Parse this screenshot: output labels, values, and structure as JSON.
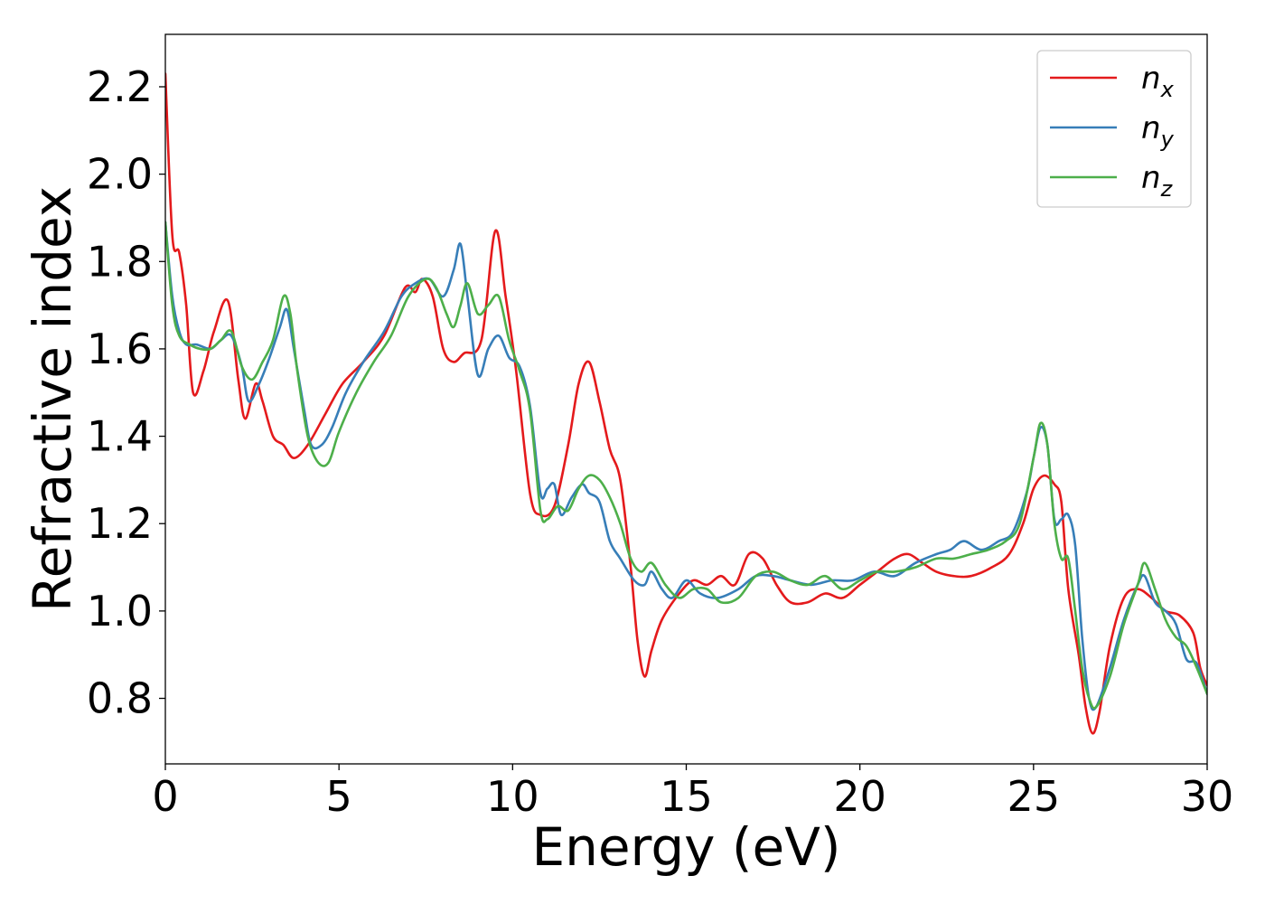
{
  "chart_data": {
    "type": "line",
    "title": "",
    "xlabel": "Energy (eV)",
    "ylabel": "Refractive index",
    "xlim": [
      0,
      30
    ],
    "ylim": [
      0.65,
      2.32
    ],
    "xticks": [
      "0",
      "5",
      "10",
      "15",
      "20",
      "25",
      "30"
    ],
    "yticks": [
      "0.8",
      "1.0",
      "1.2",
      "1.4",
      "1.6",
      "1.8",
      "2.0",
      "2.2"
    ],
    "grid": false,
    "legend_position": "top-right",
    "series": [
      {
        "name_base": "n",
        "name_sub": "x",
        "color": "#e41a1c",
        "x": [
          0,
          0.2,
          0.4,
          0.6,
          0.8,
          1.1,
          1.4,
          1.8,
          2.1,
          2.3,
          2.6,
          2.8,
          3.1,
          3.4,
          3.7,
          4.1,
          4.6,
          5.1,
          5.7,
          6.3,
          6.9,
          7.2,
          7.4,
          7.7,
          8.0,
          8.3,
          8.6,
          9.1,
          9.5,
          9.8,
          10.1,
          10.5,
          10.8,
          11.2,
          11.6,
          11.9,
          12.2,
          12.5,
          12.8,
          13.1,
          13.4,
          13.6,
          13.8,
          14.0,
          14.3,
          14.8,
          15.2,
          15.6,
          16.0,
          16.4,
          16.8,
          17.2,
          17.6,
          18.0,
          18.5,
          19.0,
          19.5,
          20.0,
          20.5,
          21.0,
          21.4,
          21.8,
          22.2,
          22.7,
          23.2,
          23.8,
          24.3,
          24.7,
          25.0,
          25.3,
          25.6,
          25.8,
          26.0,
          26.3,
          26.5,
          26.7,
          26.9,
          27.2,
          27.6,
          28.0,
          28.4,
          28.8,
          29.2,
          29.6,
          29.8,
          30.0
        ],
        "values": [
          2.23,
          1.86,
          1.82,
          1.7,
          1.5,
          1.55,
          1.64,
          1.71,
          1.53,
          1.44,
          1.52,
          1.48,
          1.4,
          1.38,
          1.35,
          1.38,
          1.45,
          1.52,
          1.57,
          1.63,
          1.74,
          1.73,
          1.76,
          1.72,
          1.6,
          1.57,
          1.59,
          1.62,
          1.87,
          1.72,
          1.55,
          1.27,
          1.22,
          1.24,
          1.38,
          1.52,
          1.57,
          1.48,
          1.37,
          1.3,
          1.1,
          0.93,
          0.85,
          0.91,
          0.98,
          1.04,
          1.07,
          1.06,
          1.08,
          1.06,
          1.13,
          1.12,
          1.06,
          1.02,
          1.02,
          1.04,
          1.03,
          1.06,
          1.09,
          1.12,
          1.13,
          1.11,
          1.09,
          1.08,
          1.08,
          1.1,
          1.13,
          1.2,
          1.28,
          1.31,
          1.29,
          1.25,
          1.05,
          0.9,
          0.78,
          0.72,
          0.77,
          0.92,
          1.03,
          1.05,
          1.03,
          1.0,
          0.99,
          0.95,
          0.87,
          0.83
        ]
      },
      {
        "name_base": "n",
        "name_sub": "y",
        "color": "#377eb8",
        "x": [
          0,
          0.2,
          0.4,
          0.6,
          0.9,
          1.3,
          1.6,
          1.9,
          2.2,
          2.4,
          2.7,
          3.0,
          3.3,
          3.5,
          3.7,
          4.0,
          4.2,
          4.5,
          4.8,
          5.2,
          5.7,
          6.3,
          6.8,
          7.2,
          7.6,
          8.0,
          8.3,
          8.5,
          8.7,
          9.0,
          9.3,
          9.6,
          9.9,
          10.2,
          10.5,
          10.8,
          11.0,
          11.2,
          11.4,
          11.7,
          12.0,
          12.2,
          12.5,
          12.8,
          13.1,
          13.5,
          13.8,
          14.0,
          14.3,
          14.6,
          15.0,
          15.4,
          15.9,
          16.5,
          17.0,
          17.5,
          18.0,
          18.6,
          19.2,
          19.8,
          20.4,
          21.0,
          21.6,
          22.2,
          22.6,
          23.0,
          23.5,
          24.0,
          24.4,
          24.8,
          25.0,
          25.2,
          25.4,
          25.6,
          25.8,
          26.0,
          26.2,
          26.4,
          26.6,
          26.8,
          27.2,
          27.6,
          28.0,
          28.2,
          28.5,
          28.8,
          29.1,
          29.4,
          29.7,
          30.0
        ],
        "values": [
          1.89,
          1.72,
          1.64,
          1.61,
          1.61,
          1.6,
          1.62,
          1.63,
          1.56,
          1.48,
          1.52,
          1.58,
          1.65,
          1.69,
          1.6,
          1.46,
          1.38,
          1.38,
          1.42,
          1.5,
          1.57,
          1.64,
          1.72,
          1.75,
          1.76,
          1.72,
          1.78,
          1.84,
          1.72,
          1.54,
          1.6,
          1.63,
          1.58,
          1.56,
          1.47,
          1.27,
          1.28,
          1.29,
          1.22,
          1.26,
          1.29,
          1.27,
          1.25,
          1.16,
          1.12,
          1.07,
          1.06,
          1.09,
          1.05,
          1.03,
          1.07,
          1.04,
          1.03,
          1.05,
          1.08,
          1.08,
          1.07,
          1.06,
          1.07,
          1.07,
          1.09,
          1.08,
          1.11,
          1.13,
          1.14,
          1.16,
          1.14,
          1.16,
          1.18,
          1.27,
          1.35,
          1.42,
          1.38,
          1.21,
          1.21,
          1.22,
          1.15,
          0.94,
          0.8,
          0.78,
          0.87,
          0.98,
          1.06,
          1.08,
          1.02,
          1.0,
          0.97,
          0.89,
          0.88,
          0.81
        ]
      },
      {
        "name_base": "n",
        "name_sub": "z",
        "color": "#4daf4a",
        "x": [
          0,
          0.2,
          0.4,
          0.7,
          1.0,
          1.3,
          1.6,
          1.9,
          2.2,
          2.5,
          2.8,
          3.1,
          3.4,
          3.6,
          3.8,
          4.1,
          4.4,
          4.7,
          5.0,
          5.5,
          6.0,
          6.5,
          7.0,
          7.5,
          7.8,
          8.1,
          8.3,
          8.5,
          8.7,
          9.0,
          9.3,
          9.6,
          9.9,
          10.2,
          10.5,
          10.8,
          11.0,
          11.3,
          11.6,
          11.9,
          12.2,
          12.5,
          12.8,
          13.1,
          13.4,
          13.7,
          14.0,
          14.4,
          14.8,
          15.2,
          15.6,
          16.0,
          16.5,
          17.0,
          17.5,
          18.0,
          18.5,
          19.0,
          19.5,
          20.0,
          20.5,
          21.0,
          21.6,
          22.2,
          22.7,
          23.2,
          23.7,
          24.2,
          24.6,
          25.0,
          25.2,
          25.4,
          25.6,
          25.8,
          26.0,
          26.2,
          26.4,
          26.6,
          26.8,
          27.2,
          27.6,
          28.0,
          28.2,
          28.5,
          28.8,
          29.1,
          29.4,
          29.7,
          30.0
        ],
        "values": [
          1.89,
          1.7,
          1.63,
          1.61,
          1.6,
          1.6,
          1.62,
          1.64,
          1.56,
          1.53,
          1.57,
          1.62,
          1.72,
          1.68,
          1.55,
          1.4,
          1.34,
          1.34,
          1.41,
          1.5,
          1.57,
          1.63,
          1.72,
          1.76,
          1.74,
          1.68,
          1.65,
          1.7,
          1.75,
          1.68,
          1.7,
          1.72,
          1.62,
          1.55,
          1.46,
          1.23,
          1.21,
          1.24,
          1.23,
          1.28,
          1.31,
          1.3,
          1.26,
          1.2,
          1.12,
          1.09,
          1.11,
          1.06,
          1.03,
          1.05,
          1.05,
          1.02,
          1.03,
          1.08,
          1.09,
          1.07,
          1.06,
          1.08,
          1.05,
          1.07,
          1.09,
          1.09,
          1.1,
          1.12,
          1.12,
          1.13,
          1.14,
          1.16,
          1.2,
          1.35,
          1.43,
          1.38,
          1.2,
          1.12,
          1.12,
          1.0,
          0.87,
          0.8,
          0.78,
          0.85,
          0.97,
          1.06,
          1.11,
          1.05,
          0.98,
          0.94,
          0.92,
          0.87,
          0.81
        ]
      }
    ]
  }
}
